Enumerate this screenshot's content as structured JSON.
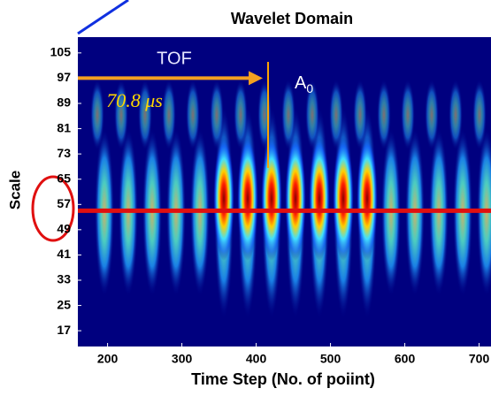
{
  "chart_data": {
    "type": "heatmap",
    "title": "Wavelet Domain",
    "x_label": "Time Step (No. of poiint)",
    "y_label": "Scale",
    "xlim": [
      160,
      716
    ],
    "xticks": [
      200,
      300,
      400,
      500,
      600,
      700
    ],
    "ylim": [
      12,
      110
    ],
    "yticks": [
      17,
      25,
      33,
      41,
      49,
      57,
      65,
      73,
      81,
      89,
      97,
      105
    ],
    "annotations": {
      "tof_label": "TOF",
      "tof_value": "70.8 μs",
      "marker_label": "A",
      "marker_subscript": "0",
      "marker_x": 416,
      "arrow_y": 97,
      "scale_line": 55
    }
  }
}
